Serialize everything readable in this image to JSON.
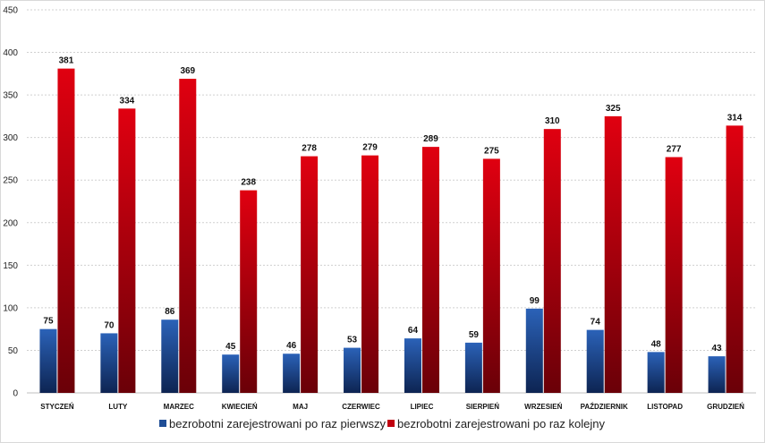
{
  "chart_data": {
    "type": "bar",
    "categories": [
      "STYCZEŃ",
      "LUTY",
      "MARZEC",
      "KWIECIEŃ",
      "MAJ",
      "CZERWIEC",
      "LIPIEC",
      "SIERPIEŃ",
      "WRZESIEŃ",
      "PAŹDZIERNIK",
      "LISTOPAD",
      "GRUDZIEŃ"
    ],
    "series": [
      {
        "name": "bezrobotni zarejestrowani po raz pierwszy",
        "values": [
          75,
          70,
          86,
          45,
          46,
          53,
          64,
          59,
          99,
          74,
          48,
          43
        ],
        "color": "#1f4e96"
      },
      {
        "name": "bezrobotni zarejestrowani po raz kolejny",
        "values": [
          381,
          334,
          369,
          238,
          278,
          279,
          289,
          275,
          310,
          325,
          277,
          314
        ],
        "color": "#c0000f"
      }
    ],
    "ylim": [
      0,
      450
    ],
    "yticks": [
      0,
      50,
      100,
      150,
      200,
      250,
      300,
      350,
      400,
      450
    ],
    "grid": true,
    "legend": "bottom",
    "data_labels": true
  }
}
